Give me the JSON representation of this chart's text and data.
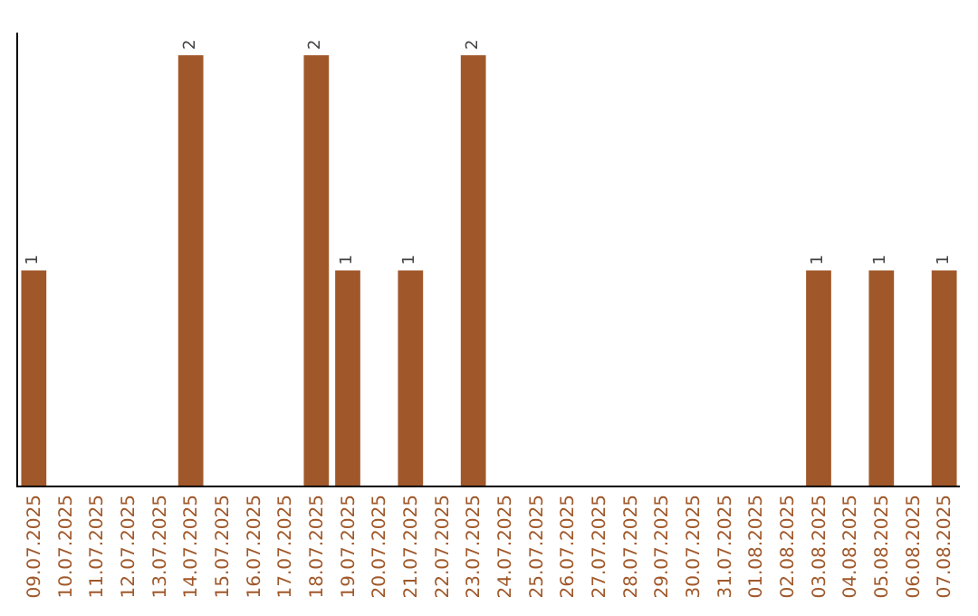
{
  "chart_data": {
    "type": "bar",
    "categories": [
      "09.07.2025",
      "10.07.2025",
      "11.07.2025",
      "12.07.2025",
      "13.07.2025",
      "14.07.2025",
      "15.07.2025",
      "16.07.2025",
      "17.07.2025",
      "18.07.2025",
      "19.07.2025",
      "20.07.2025",
      "21.07.2025",
      "22.07.2025",
      "23.07.2025",
      "24.07.2025",
      "25.07.2025",
      "26.07.2025",
      "27.07.2025",
      "28.07.2025",
      "29.07.2025",
      "30.07.2025",
      "31.07.2025",
      "01.08.2025",
      "02.08.2025",
      "03.08.2025",
      "04.08.2025",
      "05.08.2025",
      "06.08.2025",
      "07.08.2025"
    ],
    "values": [
      1,
      0,
      0,
      0,
      0,
      2,
      0,
      0,
      0,
      2,
      1,
      0,
      1,
      0,
      2,
      0,
      0,
      0,
      0,
      0,
      0,
      0,
      0,
      0,
      0,
      1,
      0,
      1,
      0,
      1
    ],
    "value_labels": [
      "1",
      null,
      null,
      null,
      null,
      "2",
      null,
      null,
      null,
      "2",
      "1",
      null,
      "1",
      null,
      "2",
      null,
      null,
      null,
      null,
      null,
      null,
      null,
      null,
      null,
      null,
      "1",
      null,
      "1",
      null,
      "1"
    ],
    "color": "#a0582a",
    "tick_labels": "x"
  }
}
